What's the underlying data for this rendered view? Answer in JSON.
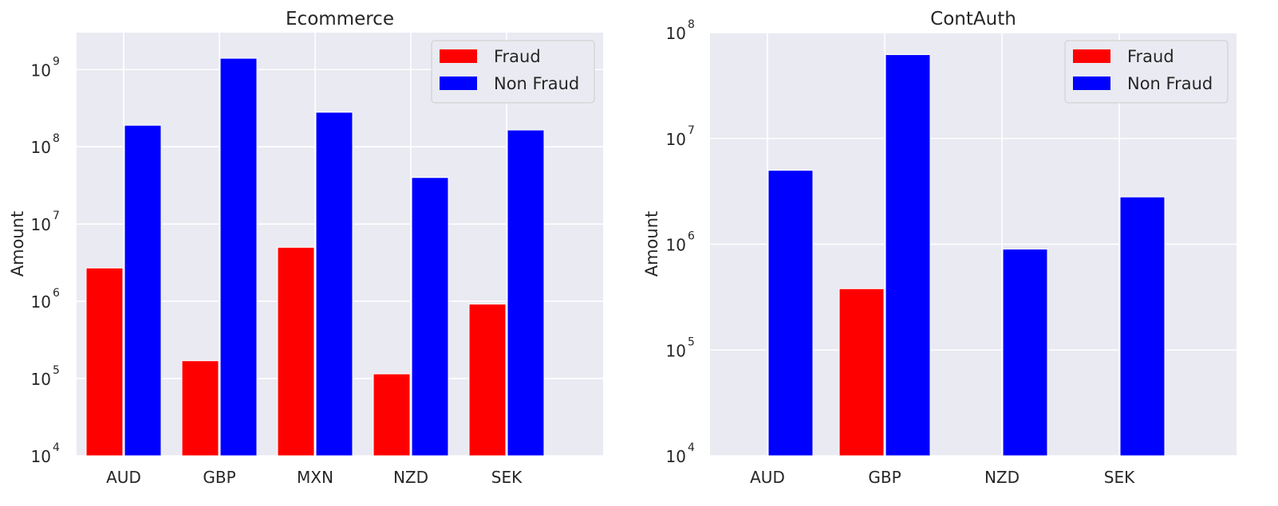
{
  "chart_data": [
    {
      "type": "bar",
      "title": "Ecommerce",
      "xlabel": "",
      "ylabel": "Amount",
      "yscale": "log",
      "ylim": [
        10000,
        3000000000
      ],
      "yticks": [
        {
          "base": "10",
          "exp": "4"
        },
        {
          "base": "10",
          "exp": "5"
        },
        {
          "base": "10",
          "exp": "6"
        },
        {
          "base": "10",
          "exp": "7"
        },
        {
          "base": "10",
          "exp": "8"
        },
        {
          "base": "10",
          "exp": "9"
        }
      ],
      "categories": [
        "AUD",
        "GBP",
        "MXN",
        "NZD",
        "SEK"
      ],
      "series": [
        {
          "name": "Fraud",
          "color": "#ff0000",
          "values": [
            2700000,
            170000,
            5000000,
            115000,
            920000
          ]
        },
        {
          "name": "Non Fraud",
          "color": "#0000ff",
          "values": [
            190000000,
            1400000000,
            280000000,
            40000000,
            165000000
          ]
        }
      ],
      "grid": true,
      "legend": "top-right"
    },
    {
      "type": "bar",
      "title": "ContAuth",
      "xlabel": "",
      "ylabel": "Amount",
      "yscale": "log",
      "ylim": [
        10000,
        100000000
      ],
      "yticks": [
        {
          "base": "10",
          "exp": "4"
        },
        {
          "base": "10",
          "exp": "5"
        },
        {
          "base": "10",
          "exp": "6"
        },
        {
          "base": "10",
          "exp": "7"
        },
        {
          "base": "10",
          "exp": "8"
        }
      ],
      "categories": [
        "AUD",
        "GBP",
        "NZD",
        "SEK"
      ],
      "series": [
        {
          "name": "Fraud",
          "color": "#ff0000",
          "values": [
            null,
            380000,
            null,
            null
          ]
        },
        {
          "name": "Non Fraud",
          "color": "#0000ff",
          "values": [
            5000000,
            62000000,
            900000,
            2800000
          ]
        }
      ],
      "grid": true,
      "legend": "top-right"
    }
  ]
}
